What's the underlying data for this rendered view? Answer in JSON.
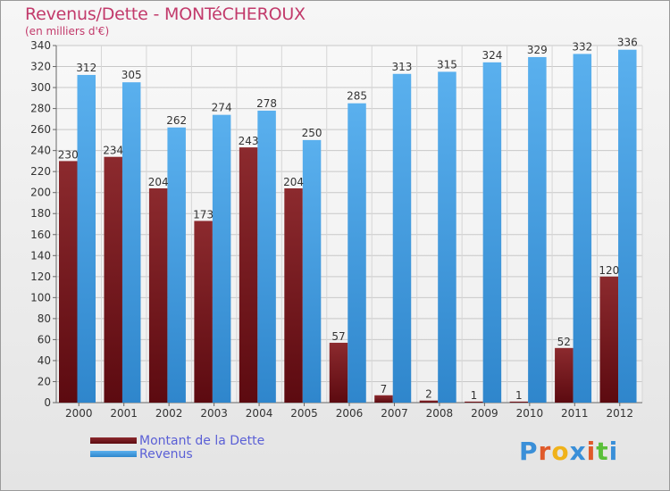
{
  "title": "Revenus/Dette - MONTéCHEROUX",
  "subtitle": "(en milliers d'€)",
  "colors": {
    "title": "#c23a6b",
    "debt": "#7a1a1e",
    "revenue": "#4aa3e6",
    "legend_text": "#5b60d6"
  },
  "chart_data": {
    "type": "bar",
    "categories": [
      "2000",
      "2001",
      "2002",
      "2003",
      "2004",
      "2005",
      "2006",
      "2007",
      "2008",
      "2009",
      "2010",
      "2011",
      "2012"
    ],
    "series": [
      {
        "name": "Montant de la Dette",
        "values": [
          230,
          234,
          204,
          173,
          243,
          204,
          57,
          7,
          2,
          1,
          1,
          52,
          120
        ]
      },
      {
        "name": "Revenus",
        "values": [
          312,
          305,
          262,
          274,
          278,
          250,
          285,
          313,
          315,
          324,
          329,
          332,
          336
        ]
      }
    ],
    "ylim": [
      0,
      340
    ],
    "yticks": [
      0,
      20,
      40,
      60,
      80,
      100,
      120,
      140,
      160,
      180,
      200,
      220,
      240,
      260,
      280,
      300,
      320,
      340
    ],
    "grid": true,
    "legend_position": "bottom-left"
  },
  "legend": {
    "debt_label": "Montant de la Dette",
    "revenue_label": "Revenus"
  },
  "logo": {
    "text": "Proxiti"
  }
}
